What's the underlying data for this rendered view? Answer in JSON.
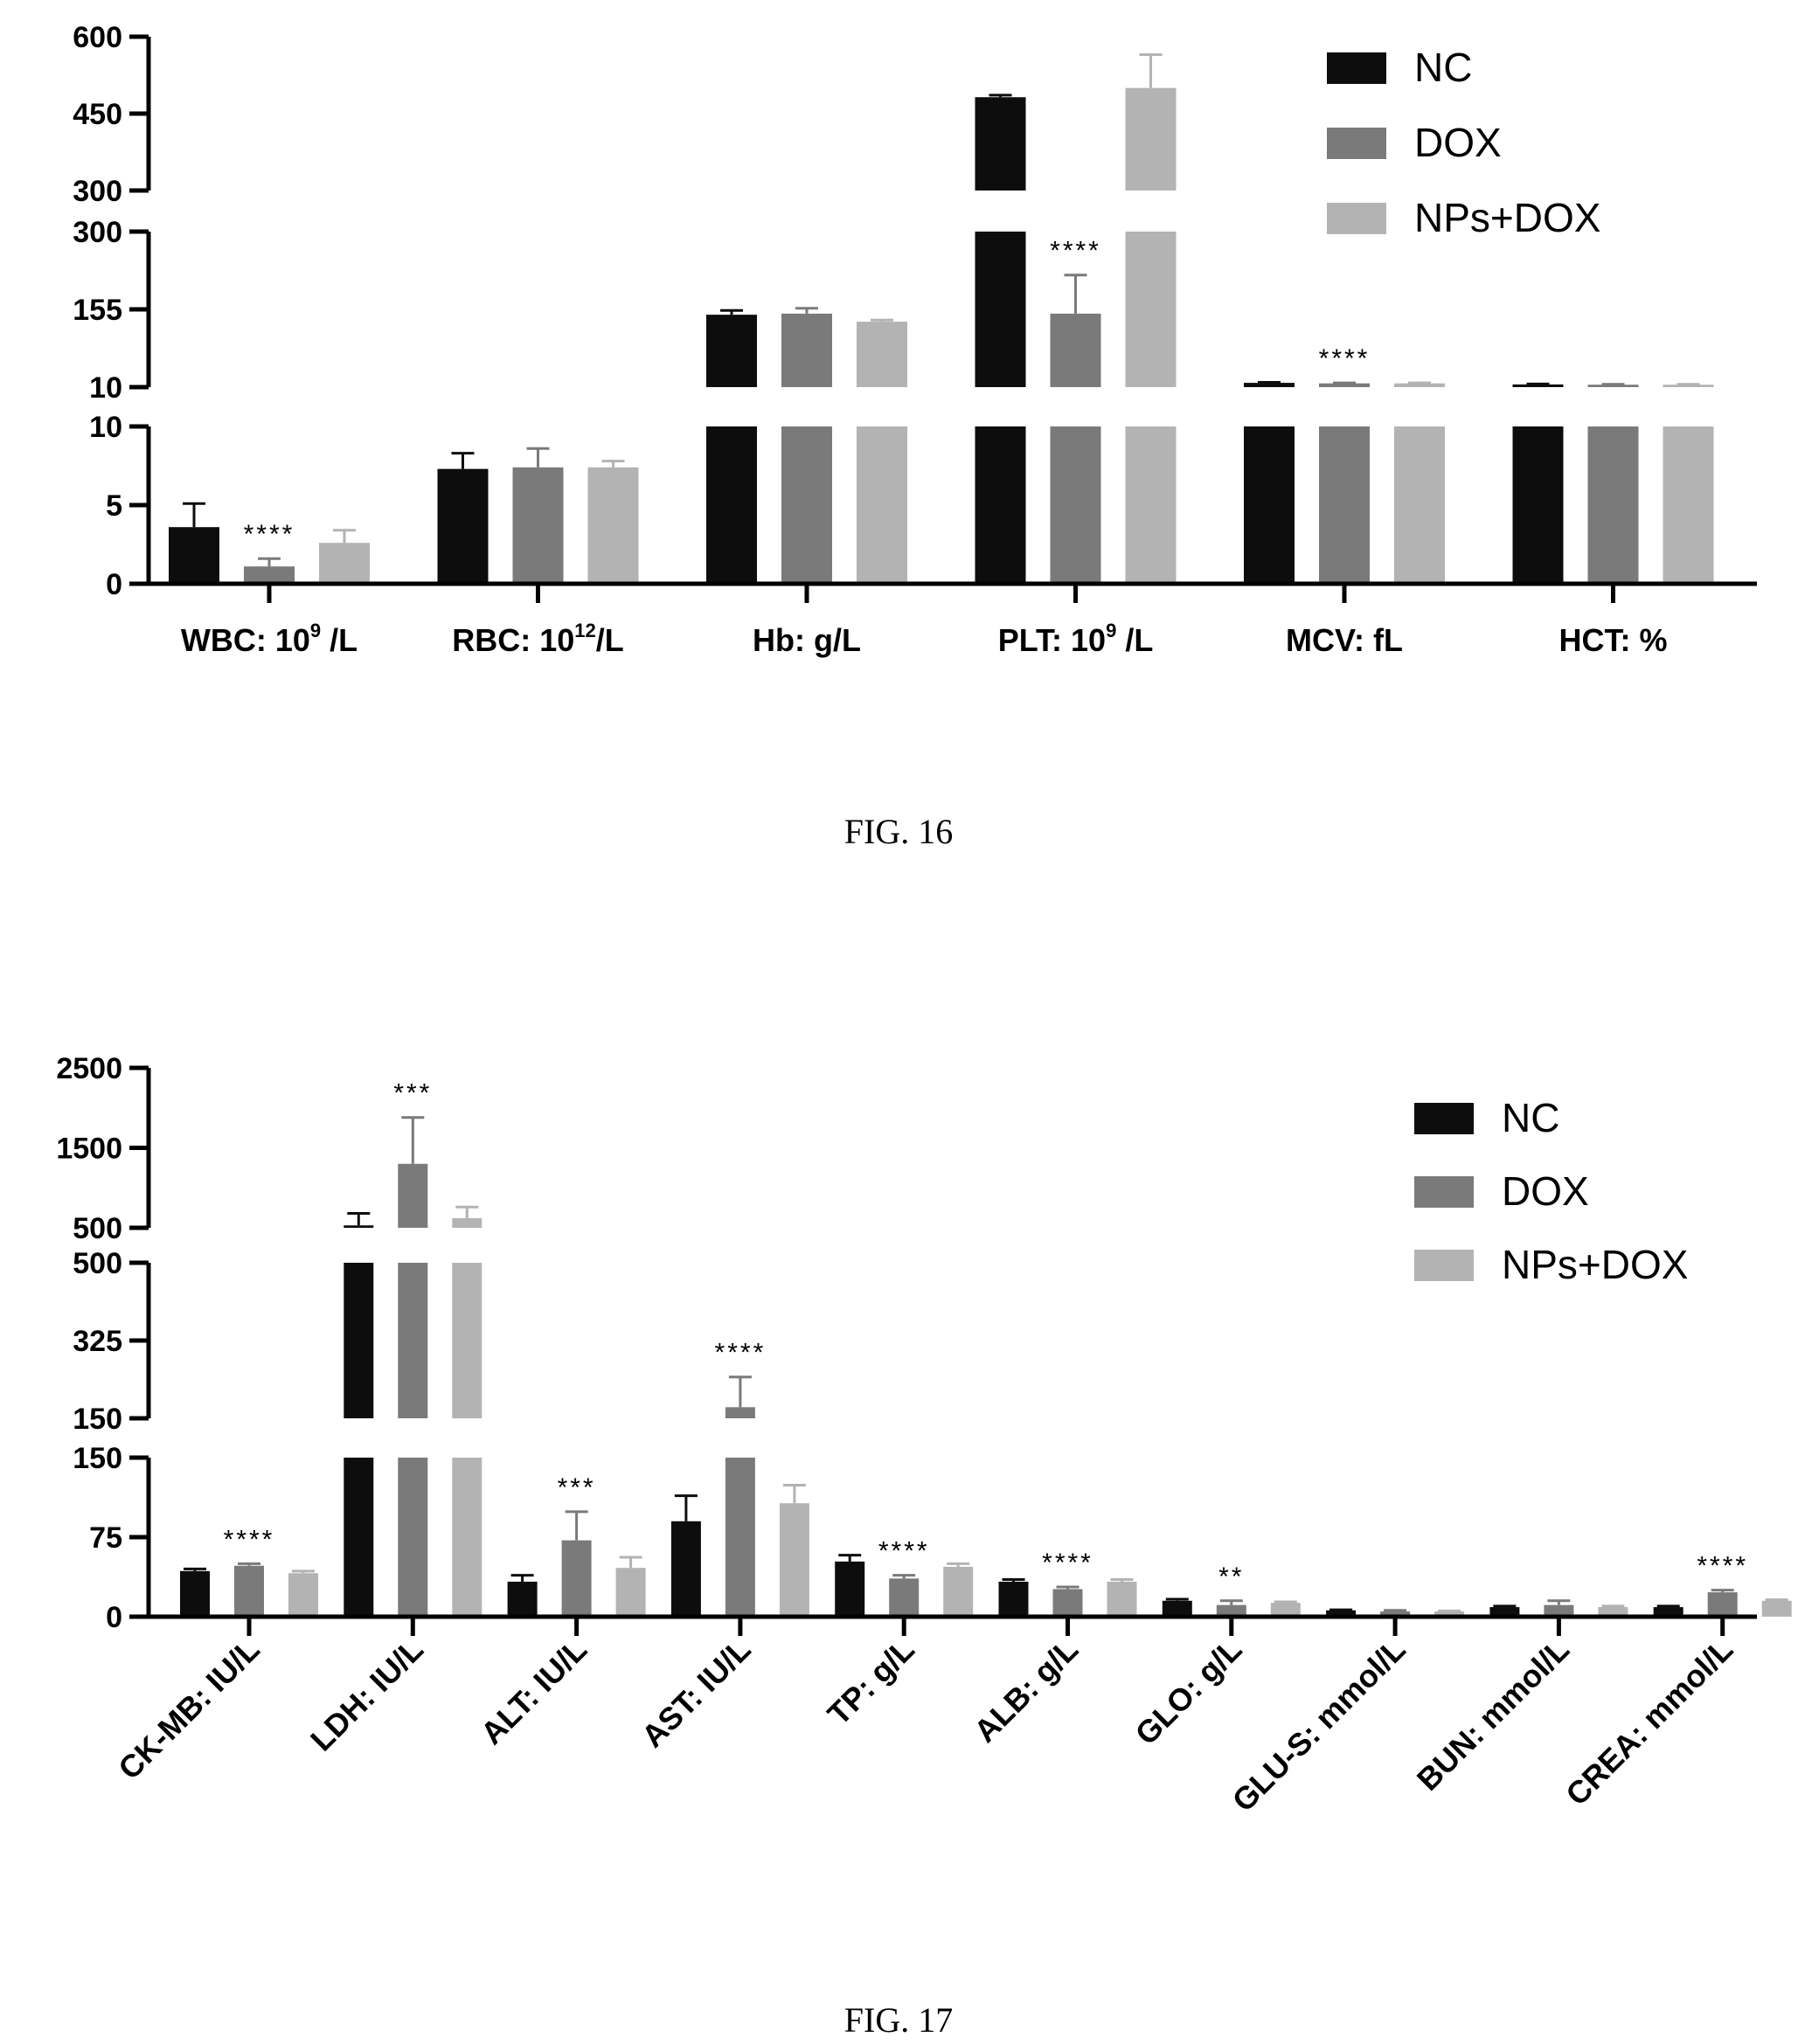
{
  "colors": {
    "NC": "#0d0d0d",
    "DOX": "#7a7a7a",
    "NPs+DOX": "#b3b3b3"
  },
  "chart_data": [
    {
      "type": "bar",
      "caption": "FIG. 16",
      "legend": [
        "NC",
        "DOX",
        "NPs+DOX"
      ],
      "legend_position": "top-right",
      "broken_axis": true,
      "segments": [
        {
          "range": [
            0,
            10
          ],
          "ticks": [
            "0",
            "5",
            "10"
          ]
        },
        {
          "range": [
            10,
            300
          ],
          "ticks": [
            "10",
            "155",
            "300"
          ]
        },
        {
          "range": [
            300,
            600
          ],
          "ticks": [
            "300",
            "450",
            "600"
          ]
        }
      ],
      "categories": [
        {
          "prefix": "WBC: 10",
          "sup": "9",
          "suffix": " /L"
        },
        {
          "prefix": "RBC: 10",
          "sup": "12",
          "suffix": "/L"
        },
        {
          "prefix": "Hb: g/L",
          "sup": "",
          "suffix": ""
        },
        {
          "prefix": "PLT: 10",
          "sup": "9",
          "suffix": " /L"
        },
        {
          "prefix": "MCV: fL",
          "sup": "",
          "suffix": ""
        },
        {
          "prefix": "HCT: %",
          "sup": "",
          "suffix": ""
        }
      ],
      "series": [
        {
          "name": "NC",
          "values": [
            3.6,
            7.3,
            145,
            482,
            18,
            15
          ],
          "errors": [
            1.5,
            1.0,
            8,
            4,
            1,
            1
          ]
        },
        {
          "name": "DOX",
          "values": [
            1.1,
            7.4,
            147,
            147,
            17,
            14.5
          ],
          "errors": [
            0.5,
            1.2,
            10,
            72,
            1,
            0.8
          ]
        },
        {
          "name": "NPs+DOX",
          "values": [
            2.6,
            7.4,
            132,
            500,
            17,
            14.5
          ],
          "errors": [
            0.8,
            0.4,
            3,
            65,
            1,
            0.8
          ]
        }
      ],
      "significance": [
        {
          "category": 0,
          "series": 1,
          "label": "****"
        },
        {
          "category": 3,
          "series": 1,
          "label": "****"
        },
        {
          "category": 4,
          "series": 1,
          "label": "****"
        }
      ]
    },
    {
      "type": "bar",
      "caption": "FIG. 17",
      "legend": [
        "NC",
        "DOX",
        "NPs+DOX"
      ],
      "legend_position": "top-right",
      "broken_axis": true,
      "segments": [
        {
          "range": [
            0,
            150
          ],
          "ticks": [
            "0",
            "75",
            "150"
          ]
        },
        {
          "range": [
            150,
            500
          ],
          "ticks": [
            "150",
            "325",
            "500"
          ]
        },
        {
          "range": [
            500,
            2500
          ],
          "ticks": [
            "500",
            "1500",
            "2500"
          ]
        }
      ],
      "categories": [
        {
          "prefix": "CK-MB: IU/L",
          "sup": "",
          "suffix": ""
        },
        {
          "prefix": "LDH: IU/L",
          "sup": "",
          "suffix": ""
        },
        {
          "prefix": "ALT: IU/L",
          "sup": "",
          "suffix": ""
        },
        {
          "prefix": "AST: IU/L",
          "sup": "",
          "suffix": ""
        },
        {
          "prefix": "TP: g/L",
          "sup": "",
          "suffix": ""
        },
        {
          "prefix": "ALB: g/L",
          "sup": "",
          "suffix": ""
        },
        {
          "prefix": "GLO: g/L",
          "sup": "",
          "suffix": ""
        },
        {
          "prefix": "GLU-S: mmol/L",
          "sup": "",
          "suffix": ""
        },
        {
          "prefix": "BUN: mmol/L",
          "sup": "",
          "suffix": ""
        },
        {
          "prefix": "CREA: mmol/L",
          "sup": "",
          "suffix": ""
        }
      ],
      "series": [
        {
          "name": "NC",
          "values": [
            43,
            530,
            33,
            90,
            52,
            33,
            15,
            6,
            9,
            9
          ],
          "errors": [
            2,
            150,
            6,
            24,
            6,
            2,
            1.5,
            0.5,
            1,
            1
          ]
        },
        {
          "name": "DOX",
          "values": [
            48,
            1300,
            72,
            175,
            36,
            26,
            11,
            5,
            11,
            23
          ],
          "errors": [
            2,
            580,
            27,
            68,
            3,
            2,
            4,
            1,
            4,
            2
          ]
        },
        {
          "name": "NPs+DOX",
          "values": [
            41,
            620,
            46,
            107,
            47,
            33,
            13,
            5,
            9,
            15
          ],
          "errors": [
            2,
            140,
            10,
            17,
            3,
            2,
            1,
            0.5,
            1,
            1
          ]
        }
      ],
      "significance": [
        {
          "category": 0,
          "series": 1,
          "label": "****"
        },
        {
          "category": 1,
          "series": 1,
          "label": "***"
        },
        {
          "category": 2,
          "series": 1,
          "label": "***"
        },
        {
          "category": 3,
          "series": 1,
          "label": "****"
        },
        {
          "category": 4,
          "series": 1,
          "label": "****"
        },
        {
          "category": 5,
          "series": 1,
          "label": "****"
        },
        {
          "category": 6,
          "series": 1,
          "label": "**"
        },
        {
          "category": 9,
          "series": 1,
          "label": "****"
        }
      ]
    }
  ]
}
